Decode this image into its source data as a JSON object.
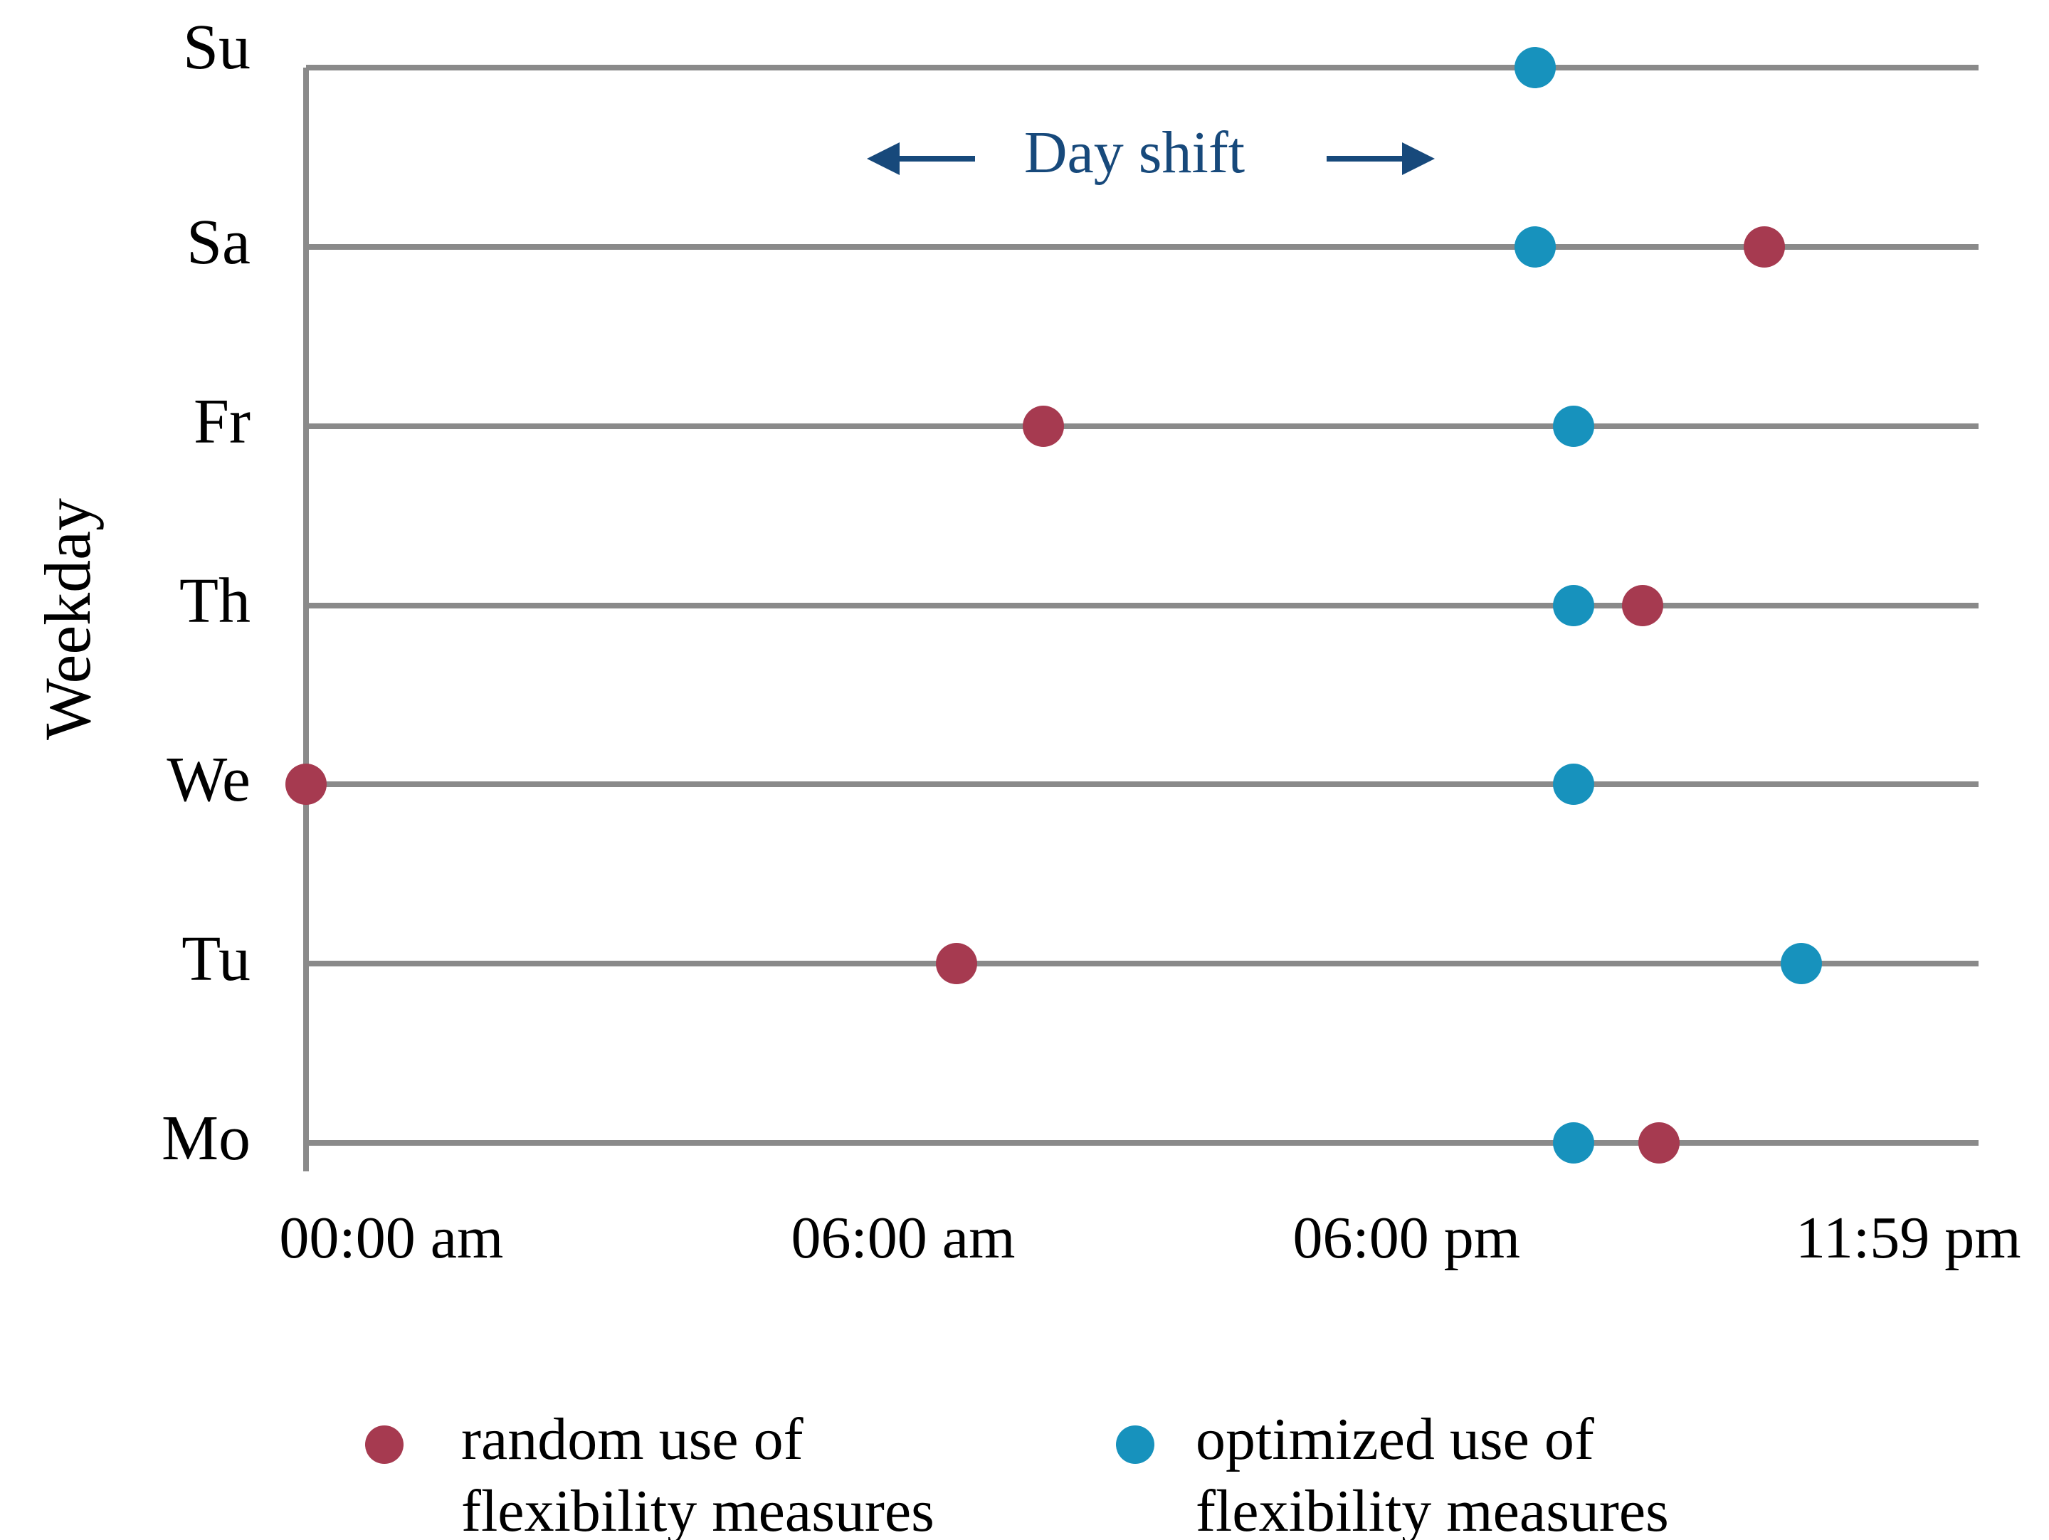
{
  "figure": {
    "ylabel": "Weekday",
    "annotation_label": "Day shift",
    "colors": {
      "random": "#A63A50",
      "optimized": "#1792BD",
      "annotation": "#17497B",
      "gridline": "#8A8A8A",
      "text": "#000000"
    },
    "x_ticks": [
      {
        "label": "00:00 am",
        "pct": 5.1
      },
      {
        "label": "06:00 am",
        "pct": 35.7
      },
      {
        "label": "06:00 pm",
        "pct": 65.8
      },
      {
        "label": "11:59 pm",
        "pct": 95.8
      }
    ],
    "rows": [
      {
        "label": "Su"
      },
      {
        "label": "Sa"
      },
      {
        "label": "Fr"
      },
      {
        "label": "Th"
      },
      {
        "label": "We"
      },
      {
        "label": "Tu"
      },
      {
        "label": "Mo"
      }
    ]
  },
  "legend": {
    "random": {
      "line1": "random use of",
      "line2": "flexibility measures"
    },
    "optimized": {
      "line1": "optimized use of",
      "line2": "flexibility measures"
    }
  },
  "chart_data": {
    "type": "scatter",
    "title": "",
    "xlabel": "",
    "ylabel": "Weekday",
    "x_axis": {
      "tick_labels": [
        "00:00 am",
        "06:00 am",
        "06:00 pm",
        "11:59 pm"
      ],
      "range_pct": [
        0,
        100
      ]
    },
    "y_categories_top_to_bottom": [
      "Su",
      "Sa",
      "Fr",
      "Th",
      "We",
      "Tu",
      "Mo"
    ],
    "grid": "horizontal-only",
    "legend_position": "bottom",
    "annotation": {
      "text": "Day shift",
      "arrows": [
        "left",
        "right"
      ],
      "location": "top-center of plot, Su–Sa band"
    },
    "series": [
      {
        "name": "random use of flexibility measures",
        "color": "#A63A50",
        "points": [
          {
            "day": "We",
            "approx_time": "00:00 am",
            "x_pct": 0.0
          },
          {
            "day": "Tu",
            "approx_time": "~07:15 am",
            "x_pct": 38.9
          },
          {
            "day": "Fr",
            "approx_time": "~09:20 am",
            "x_pct": 44.1
          },
          {
            "day": "Th",
            "approx_time": "~08:50 pm",
            "x_pct": 79.9
          },
          {
            "day": "Mo",
            "approx_time": "~09:00 pm",
            "x_pct": 80.9
          },
          {
            "day": "Sa",
            "approx_time": "~10:20 pm",
            "x_pct": 87.2
          }
        ]
      },
      {
        "name": "optimized use of flexibility measures",
        "color": "#1792BD",
        "points": [
          {
            "day": "Su",
            "approx_time": "~07:30 pm",
            "x_pct": 73.5
          },
          {
            "day": "Sa",
            "approx_time": "~07:30 pm",
            "x_pct": 73.5
          },
          {
            "day": "Fr",
            "approx_time": "~08:00 pm",
            "x_pct": 75.8
          },
          {
            "day": "Th",
            "approx_time": "~08:00 pm",
            "x_pct": 75.8
          },
          {
            "day": "We",
            "approx_time": "~08:00 pm",
            "x_pct": 75.8
          },
          {
            "day": "Mo",
            "approx_time": "~08:00 pm",
            "x_pct": 75.8
          },
          {
            "day": "Tu",
            "approx_time": "~10:45 pm",
            "x_pct": 89.4
          }
        ]
      }
    ]
  }
}
